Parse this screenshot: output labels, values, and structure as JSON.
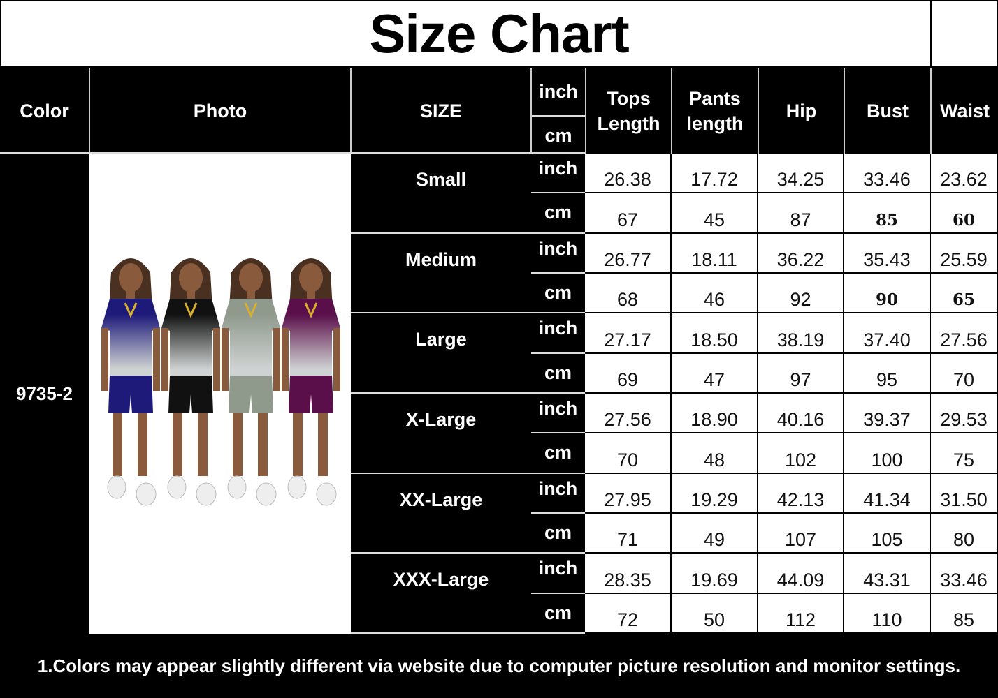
{
  "title": "Size Chart",
  "headers": {
    "color": "Color",
    "photo": "Photo",
    "size": "SIZE",
    "inch": "inch",
    "cm": "cm",
    "tops": "Tops Length",
    "pants": "Pants length",
    "hip": "Hip",
    "bust": "Bust",
    "waist": "Waist"
  },
  "color_value": "9735-2",
  "photo_colors": [
    "#1e1a7a",
    "#111111",
    "#8f9a8c",
    "#5a0f4a"
  ],
  "sizes": [
    {
      "name": "Small",
      "inch": [
        "26.38",
        "17.72",
        "34.25",
        "33.46",
        "23.62"
      ],
      "cm": [
        "67",
        "45",
        "87",
        "85",
        "60"
      ]
    },
    {
      "name": "Medium",
      "inch": [
        "26.77",
        "18.11",
        "36.22",
        "35.43",
        "25.59"
      ],
      "cm": [
        "68",
        "46",
        "92",
        "90",
        "65"
      ]
    },
    {
      "name": "Large",
      "inch": [
        "27.17",
        "18.50",
        "38.19",
        "37.40",
        "27.56"
      ],
      "cm": [
        "69",
        "47",
        "97",
        "95",
        "70"
      ]
    },
    {
      "name": "X-Large",
      "inch": [
        "27.56",
        "18.90",
        "40.16",
        "39.37",
        "29.53"
      ],
      "cm": [
        "70",
        "48",
        "102",
        "100",
        "75"
      ]
    },
    {
      "name": "XX-Large",
      "inch": [
        "27.95",
        "19.29",
        "42.13",
        "41.34",
        "31.50"
      ],
      "cm": [
        "71",
        "49",
        "107",
        "105",
        "80"
      ]
    },
    {
      "name": "XXX-Large",
      "inch": [
        "28.35",
        "19.69",
        "44.09",
        "43.31",
        "33.46"
      ],
      "cm": [
        "72",
        "50",
        "112",
        "110",
        "85"
      ]
    }
  ],
  "footer": "1.Colors may appear slightly different via website due to computer picture resolution and monitor settings."
}
